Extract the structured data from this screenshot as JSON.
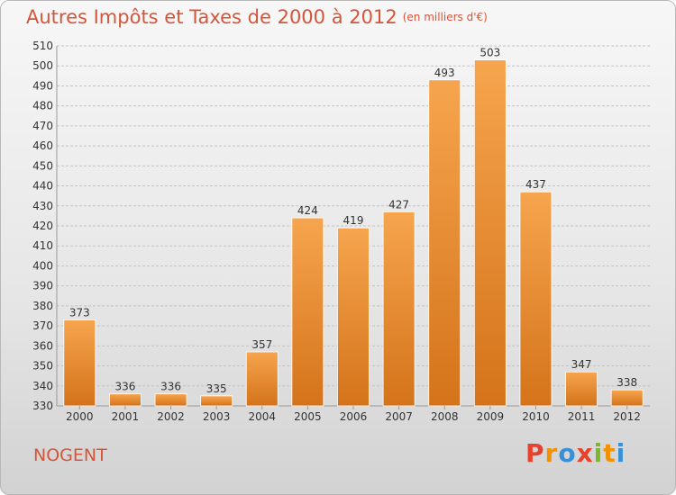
{
  "title": "Autres Impôts et Taxes de 2000 à 2012",
  "unit_note": "(en milliers d'€)",
  "commune": "NOGENT",
  "logo": {
    "letters": [
      "P",
      "r",
      "o",
      "x",
      "i",
      "t",
      "i"
    ],
    "colors": [
      "#e8412c",
      "#f39200",
      "#3b8fd6",
      "#e8412c",
      "#7ab829",
      "#f39200",
      "#3b8fd6"
    ]
  },
  "colors": {
    "bar_top": "#f6a54e",
    "bar_bottom": "#d4731a",
    "title": "#d4563a"
  },
  "chart_data": {
    "type": "bar",
    "title": "Autres Impôts et Taxes de 2000 à 2012",
    "xlabel": "",
    "ylabel": "",
    "ylim": [
      330,
      510
    ],
    "yticks": [
      330,
      340,
      350,
      360,
      370,
      380,
      390,
      400,
      410,
      420,
      430,
      440,
      450,
      460,
      470,
      480,
      490,
      500,
      510
    ],
    "grid": true,
    "categories": [
      "2000",
      "2001",
      "2002",
      "2003",
      "2004",
      "2005",
      "2006",
      "2007",
      "2008",
      "2009",
      "2010",
      "2011",
      "2012"
    ],
    "values": [
      373,
      336,
      336,
      335,
      357,
      424,
      419,
      427,
      493,
      503,
      437,
      347,
      338
    ]
  }
}
